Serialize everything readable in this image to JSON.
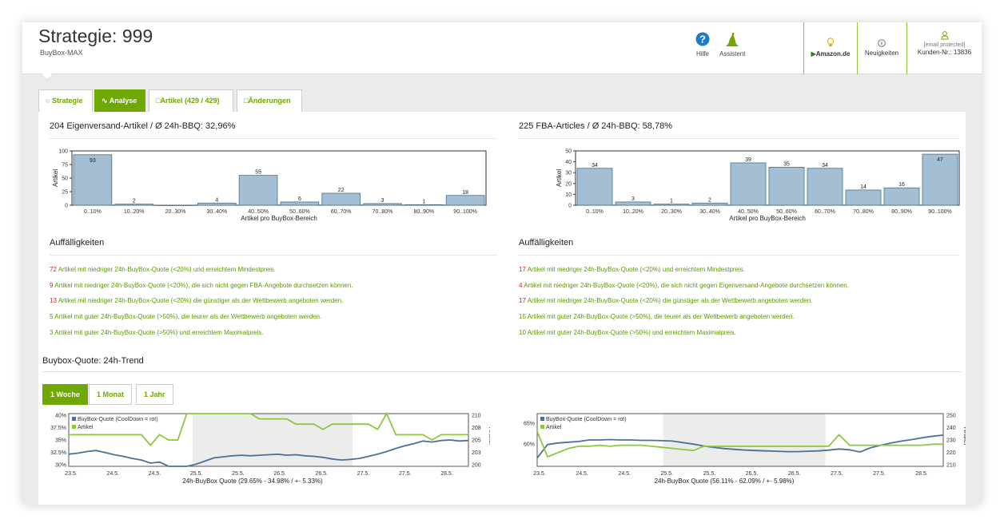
{
  "header": {
    "title": "Strategie: 999",
    "subtitle": "BuyBox-MAX",
    "help_label": "Hilfe",
    "assistant_label": "Assistent",
    "amazon_label": "Amazon.de",
    "news_label": "Neuigkeiten",
    "customer_email": "[email protected]",
    "customer_no": "Kunden-Nr.: 13836"
  },
  "tabs": [
    {
      "label": "Strategie",
      "icon": "lightbulb-icon"
    },
    {
      "label": "Analyse",
      "icon": "chart-icon"
    },
    {
      "label": "Artikel (429 / 429)",
      "icon": "bag-icon"
    },
    {
      "label": "Änderungen",
      "icon": "edit-icon"
    }
  ],
  "left": {
    "title": "204 Eigenversand-Artikel / Ø 24h-BBQ: 32,96%",
    "findings_title": "Auffälligkeiten",
    "findings": [
      {
        "count": "72",
        "text": " Artikel mit niedriger 24h-BuyBox-Quote (<20%) und erreichtem Mindestpreis.",
        "alert": true
      },
      {
        "count": "9",
        "text": " Artikel mit niedriger 24h-BuyBox-Quote (<20%), die sich nicht gegen FBA-Angebote durchsetzen können.",
        "alert": true
      },
      {
        "count": "13",
        "text": " Artikel mit niedriger 24h-BuyBox-Quote (<20%) die günstiger als der Wettbewerb angeboten werden.",
        "alert": true
      },
      {
        "count": "5",
        "text": " Artikel mit guter 24h-BuyBox-Quote (>50%), die teurer als der Wettbewerb angeboten werden.",
        "alert": false
      },
      {
        "count": "3",
        "text": " Artikel mit guter 24h-BuyBox-Quote (>50%) und erreichtem Maximalpreis.",
        "alert": false
      }
    ]
  },
  "right": {
    "title": "225 FBA-Articles / Ø 24h-BBQ: 58,78%",
    "findings_title": "Auffälligkeiten",
    "findings": [
      {
        "count": "17",
        "text": " Artikel mit niedriger 24h-BuyBox-Quote (<20%) und erreichtem Mindestpreis.",
        "alert": true
      },
      {
        "count": "4",
        "text": " Artikel mit niedriger 24h-BuyBox-Quote (<20%), die sich nicht gegen Eigenversand-Angebote durchsetzen können.",
        "alert": true
      },
      {
        "count": "17",
        "text": " Artikel mit niedriger 24h-BuyBox-Quote (<20%) die günstiger als der Wettbewerb angeboten werden.",
        "alert": true
      },
      {
        "count": "15",
        "text": " Artikel mit guter 24h-BuyBox-Quote (>50%), die teurer als der Wettbewerb angeboten werden.",
        "alert": false
      },
      {
        "count": "10",
        "text": " Artikel mit guter 24h-BuyBox-Quote (>50%) und erreichtem Maximalpreis.",
        "alert": false
      }
    ]
  },
  "trend": {
    "title": "Buybox-Quote: 24h-Trend",
    "ranges": [
      "1 Woche",
      "1 Monat",
      "1 Jahr"
    ],
    "active_range": "1 Woche"
  },
  "chart_data": [
    {
      "type": "bar",
      "categories": [
        "0..10%",
        "10..20%",
        "20..30%",
        "30..40%",
        "40..50%",
        "50..60%",
        "60..70%",
        "70..80%",
        "80..90%",
        "90..100%"
      ],
      "values": [
        93,
        2,
        0,
        4,
        55,
        6,
        22,
        3,
        1,
        18
      ],
      "labels": [
        "93",
        "2",
        "",
        "4",
        "55",
        "6",
        "22",
        "3",
        "1",
        "18"
      ],
      "ylim": [
        0,
        100
      ],
      "yticks": [
        0,
        25,
        50,
        75,
        100
      ],
      "xlabel": "Artikel pro BuyBox-Bereich",
      "ylabel": "Artikel",
      "color": "#a4bfd3"
    },
    {
      "type": "bar",
      "categories": [
        "0..10%",
        "10..20%",
        "20..30%",
        "30..40%",
        "40..50%",
        "50..60%",
        "60..70%",
        "70..80%",
        "80..90%",
        "90..100%"
      ],
      "values": [
        34,
        3,
        1,
        2,
        39,
        35,
        34,
        14,
        16,
        47
      ],
      "labels": [
        "34",
        "3",
        "1",
        "2",
        "39",
        "35",
        "34",
        "14",
        "16",
        "47"
      ],
      "ylim": [
        0,
        50
      ],
      "yticks": [
        0,
        10,
        20,
        30,
        40,
        50
      ],
      "xlabel": "Artikel pro BuyBox-Bereich",
      "ylabel": "Artikel",
      "color": "#a4bfd3"
    },
    {
      "type": "line",
      "xticks": [
        "23.5.",
        "24.5.",
        "24.5.",
        "25.5.",
        "25.5.",
        "26.5.",
        "26.5.",
        "27.5.",
        "27.5.",
        "28.5."
      ],
      "left_ticks": [
        "40%",
        "37.5%",
        "35%",
        "32.5%",
        "30%"
      ],
      "right_ticks": [
        "210",
        "208",
        "205",
        "203",
        "200"
      ],
      "ylim_left": [
        30,
        40
      ],
      "ylim_right": [
        200,
        210
      ],
      "right_label": "Artikel",
      "xlabel": "24h-BuyBox Quote (29.65% - 34.98% / +- 5.33%)",
      "series": [
        {
          "name": "BuyBox-Quote (CoolDown = rot)",
          "color": "#4a7196",
          "axis": "left",
          "values": [
            32.3,
            32.5,
            32.8,
            33.0,
            32.6,
            32.2,
            31.9,
            31.5,
            31.2,
            30.6,
            30.8,
            30.0,
            29.7,
            29.9,
            30.4,
            31.0,
            31.6,
            31.8,
            32.0,
            32.1,
            32.0,
            32.1,
            32.2,
            32.3,
            32.1,
            32.2,
            32.0,
            31.9,
            31.7,
            31.4,
            31.2,
            31.3,
            31.5,
            31.9,
            32.3,
            32.8,
            33.4,
            33.9,
            34.3,
            34.8,
            34.6,
            34.9,
            35.0,
            34.8,
            34.9
          ]
        },
        {
          "name": "Artikel",
          "color": "#8dc63f",
          "axis": "right",
          "values": [
            206,
            206,
            206,
            206,
            206,
            206,
            206,
            206,
            206,
            204,
            206,
            205,
            205,
            210,
            210,
            210,
            210,
            210,
            210,
            210,
            210,
            209,
            209,
            209,
            209,
            208,
            208,
            208,
            207,
            208,
            208,
            208,
            208,
            208,
            207,
            210,
            206,
            206,
            206,
            206,
            205,
            206,
            206,
            206,
            206
          ]
        }
      ]
    },
    {
      "type": "line",
      "xticks": [
        "23.5.",
        "24.5.",
        "24.5.",
        "25.5.",
        "25.5.",
        "26.5.",
        "26.5.",
        "27.5.",
        "27.5.",
        "28.5."
      ],
      "left_ticks": [
        "65%",
        "60%"
      ],
      "right_ticks": [
        "250",
        "240",
        "230",
        "220",
        "210"
      ],
      "ylim_left": [
        54,
        68
      ],
      "ylim_right": [
        205,
        255
      ],
      "right_label": "Artikel",
      "xlabel": "24h-BuyBox Quote (56.11% - 62.09% / +- 5.98%)",
      "series": [
        {
          "name": "BuyBox-Quote (CoolDown = rot)",
          "color": "#4a7196",
          "axis": "left",
          "values": [
            56.2,
            59.8,
            60.2,
            60.4,
            60.6,
            61.0,
            61.0,
            61.1,
            61.0,
            61.0,
            60.9,
            60.9,
            60.8,
            60.7,
            60.3,
            59.9,
            59.4,
            59.0,
            58.7,
            58.5,
            58.3,
            58.2,
            58.1,
            58.0,
            57.9,
            57.9,
            58.0,
            58.1,
            58.3,
            58.6,
            58.4,
            57.8,
            58.9,
            59.6,
            60.2,
            60.7,
            61.1,
            61.6,
            62.0,
            62.3
          ]
        },
        {
          "name": "Artikel",
          "color": "#8dc63f",
          "axis": "right",
          "values": [
            238,
            214,
            218,
            222,
            224,
            224,
            225,
            224,
            225,
            225,
            225,
            224,
            223,
            222,
            221,
            220,
            224,
            224,
            224,
            224,
            224,
            224,
            224,
            224,
            224,
            224,
            224,
            224,
            224,
            235,
            225,
            225,
            225,
            225,
            225,
            225,
            225,
            225,
            226,
            226
          ]
        }
      ]
    }
  ]
}
